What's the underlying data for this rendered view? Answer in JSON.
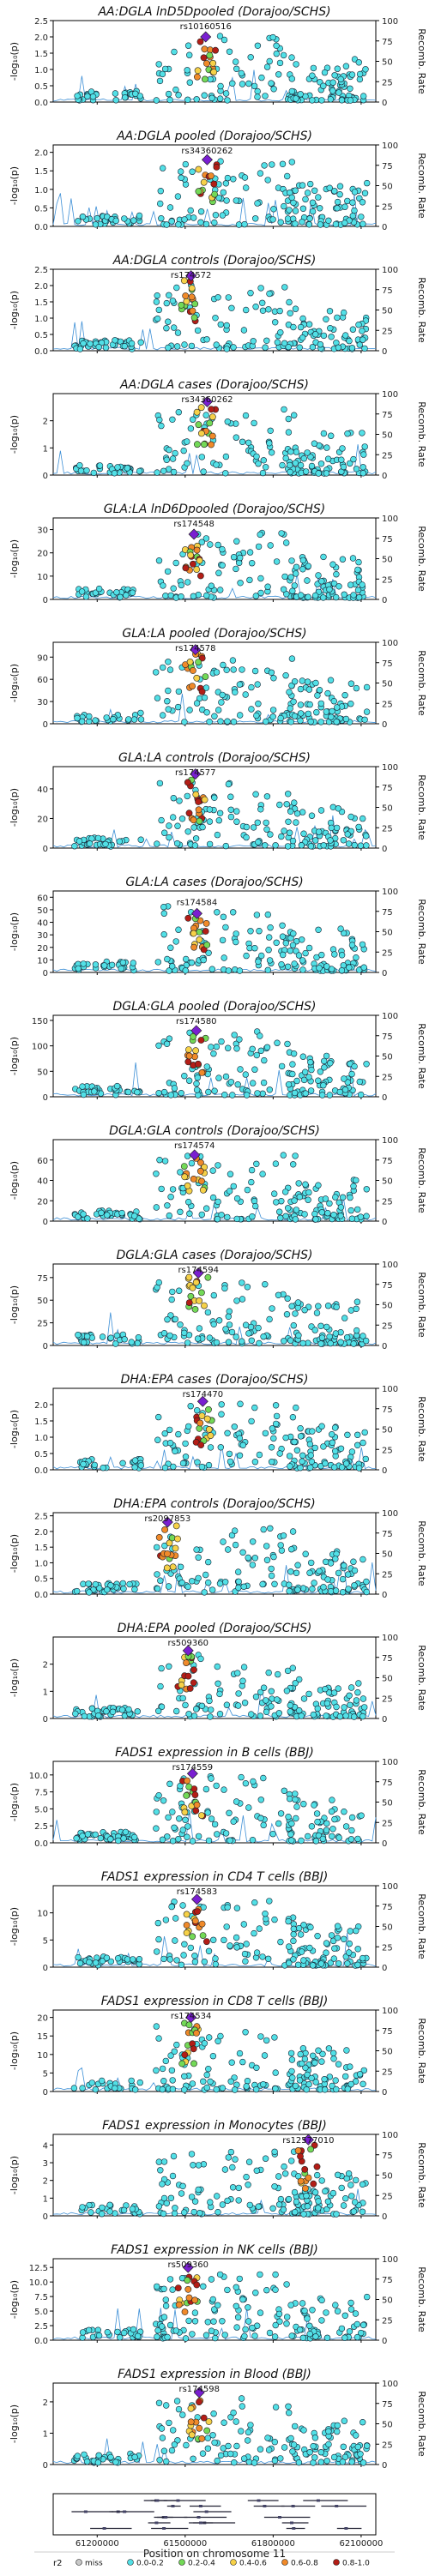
{
  "figure": {
    "y_axis_label": "-log₁₀(p)",
    "right_axis_label": "Recomb. Rate",
    "right_ticks": [
      "0",
      "25",
      "50",
      "75",
      "100"
    ],
    "x_axis_label": "Position on chromosome 11",
    "x_ticks": [
      "61200000",
      "61500000",
      "61800000",
      "62100000"
    ],
    "legend": {
      "title": "r2",
      "entries": [
        {
          "label": "miss",
          "color": "#c8c8c8"
        },
        {
          "label": "0.0-0.2",
          "color": "#52e0e6"
        },
        {
          "label": "0.2-0.4",
          "color": "#73d957"
        },
        {
          "label": "0.4-0.6",
          "color": "#f6d148"
        },
        {
          "label": "0.6-0.8",
          "color": "#f08a2a"
        },
        {
          "label": "0.8-1.0",
          "color": "#b31d16"
        }
      ]
    },
    "lead_color": "#7a1fd1"
  },
  "chart_data": [
    {
      "type": "scatter",
      "title": "AA:DGLA lnD5Dpooled (Dorajoo/SCHS)",
      "lead_snp": "rs10160516",
      "ylim": [
        0,
        2.5
      ],
      "yticks": [
        "0.0",
        "0.5",
        "1.0",
        "1.5",
        "2.0",
        "2.5"
      ],
      "lead": {
        "x": 61570000,
        "y": 2.0
      }
    },
    {
      "type": "scatter",
      "title": "AA:DGLA pooled (Dorajoo/SCHS)",
      "lead_snp": "rs34360262",
      "ylim": [
        0,
        2.2
      ],
      "yticks": [
        "0.0",
        "0.5",
        "1.0",
        "1.5",
        "2.0"
      ],
      "lead": {
        "x": 61575000,
        "y": 1.8
      }
    },
    {
      "type": "scatter",
      "title": "AA:DGLA controls (Dorajoo/SCHS)",
      "lead_snp": "rs174572",
      "ylim": [
        0,
        2.5
      ],
      "yticks": [
        "0.0",
        "0.5",
        "1.0",
        "1.5",
        "2.0",
        "2.5"
      ],
      "lead": {
        "x": 61520000,
        "y": 2.3
      }
    },
    {
      "type": "scatter",
      "title": "AA:DGLA cases (Dorajoo/SCHS)",
      "lead_snp": "rs34360262",
      "ylim": [
        0,
        3
      ],
      "yticks": [
        "0",
        "1",
        "2"
      ],
      "lead": {
        "x": 61575000,
        "y": 2.7
      }
    },
    {
      "type": "scatter",
      "title": "GLA:LA lnD6Dpooled (Dorajoo/SCHS)",
      "lead_snp": "rs174548",
      "ylim": [
        0,
        35
      ],
      "yticks": [
        "0",
        "10",
        "20",
        "30"
      ],
      "lead": {
        "x": 61530000,
        "y": 28
      }
    },
    {
      "type": "scatter",
      "title": "GLA:LA pooled (Dorajoo/SCHS)",
      "lead_snp": "rs174578",
      "ylim": [
        0,
        110
      ],
      "yticks": [
        "0",
        "30",
        "60",
        "90"
      ],
      "lead": {
        "x": 61535000,
        "y": 100
      }
    },
    {
      "type": "scatter",
      "title": "GLA:LA controls (Dorajoo/SCHS)",
      "lead_snp": "rs174577",
      "ylim": [
        0,
        55
      ],
      "yticks": [
        "0",
        "20",
        "40"
      ],
      "lead": {
        "x": 61535000,
        "y": 50
      }
    },
    {
      "type": "scatter",
      "title": "GLA:LA cases (Dorajoo/SCHS)",
      "lead_snp": "rs174584",
      "ylim": [
        0,
        65
      ],
      "yticks": [
        "0",
        "10",
        "20",
        "30",
        "40",
        "50",
        "60"
      ],
      "lead": {
        "x": 61540000,
        "y": 47
      }
    },
    {
      "type": "scatter",
      "title": "DGLA:GLA pooled (Dorajoo/SCHS)",
      "lead_snp": "rs174580",
      "ylim": [
        0,
        160
      ],
      "yticks": [
        "0",
        "50",
        "100",
        "150"
      ],
      "lead": {
        "x": 61538000,
        "y": 130
      }
    },
    {
      "type": "scatter",
      "title": "DGLA:GLA controls (Dorajoo/SCHS)",
      "lead_snp": "rs174574",
      "ylim": [
        0,
        80
      ],
      "yticks": [
        "0",
        "20",
        "40",
        "60"
      ],
      "lead": {
        "x": 61532000,
        "y": 65
      }
    },
    {
      "type": "scatter",
      "title": "DGLA:GLA cases (Dorajoo/SCHS)",
      "lead_snp": "rs174594",
      "ylim": [
        0,
        90
      ],
      "yticks": [
        "0",
        "25",
        "50",
        "75"
      ],
      "lead": {
        "x": 61545000,
        "y": 80
      }
    },
    {
      "type": "scatter",
      "title": "DHA:EPA cases (Dorajoo/SCHS)",
      "lead_snp": "rs174470",
      "ylim": [
        0,
        2.5
      ],
      "yticks": [
        "0.0",
        "0.5",
        "1.0",
        "1.5",
        "2.0"
      ],
      "lead": {
        "x": 61560000,
        "y": 2.1
      }
    },
    {
      "type": "scatter",
      "title": "DHA:EPA controls (Dorajoo/SCHS)",
      "lead_snp": "rs2097853",
      "ylim": [
        0,
        2.6
      ],
      "yticks": [
        "0.0",
        "0.5",
        "1.0",
        "1.5",
        "2.0",
        "2.5"
      ],
      "lead": {
        "x": 61440000,
        "y": 2.3
      }
    },
    {
      "type": "scatter",
      "title": "DHA:EPA pooled (Dorajoo/SCHS)",
      "lead_snp": "rs509360",
      "ylim": [
        0,
        3
      ],
      "yticks": [
        "0",
        "1",
        "2"
      ],
      "lead": {
        "x": 61510000,
        "y": 2.5
      }
    },
    {
      "type": "scatter",
      "title": "FADS1 expression in B cells (BBJ)",
      "lead_snp": "rs174559",
      "ylim": [
        0,
        12
      ],
      "yticks": [
        "0.0",
        "2.5",
        "5.0",
        "7.5",
        "10.0"
      ],
      "lead": {
        "x": 61525000,
        "y": 10.2
      }
    },
    {
      "type": "scatter",
      "title": "FADS1 expression in CD4 T cells (BBJ)",
      "lead_snp": "rs174583",
      "ylim": [
        0,
        15
      ],
      "yticks": [
        "0",
        "5",
        "10"
      ],
      "lead": {
        "x": 61540000,
        "y": 12.5
      }
    },
    {
      "type": "scatter",
      "title": "FADS1 expression in CD8 T cells (BBJ)",
      "lead_snp": "rs174534",
      "ylim": [
        0,
        22
      ],
      "yticks": [
        "0",
        "5",
        "10",
        "15",
        "20"
      ],
      "lead": {
        "x": 61520000,
        "y": 20
      }
    },
    {
      "type": "scatter",
      "title": "FADS1 expression in Monocytes (BBJ)",
      "lead_snp": "rs12577010",
      "ylim": [
        0,
        4.6
      ],
      "yticks": [
        "0",
        "1",
        "2",
        "3",
        "4"
      ],
      "lead": {
        "x": 61920000,
        "y": 4.3
      }
    },
    {
      "type": "scatter",
      "title": "FADS1 expression in NK cells (BBJ)",
      "lead_snp": "rs509360",
      "ylim": [
        0,
        14
      ],
      "yticks": [
        "0.0",
        "2.5",
        "5.0",
        "7.5",
        "10.0",
        "12.5"
      ],
      "lead": {
        "x": 61510000,
        "y": 12.5
      }
    },
    {
      "type": "scatter",
      "title": "FADS1 expression in Blood (BBJ)",
      "lead_snp": "rs174598",
      "ylim": [
        0,
        2.6
      ],
      "yticks": [
        "0",
        "1",
        "2"
      ],
      "lead": {
        "x": 61548000,
        "y": 2.3
      }
    }
  ],
  "xlim": [
    61050000,
    62150000
  ]
}
